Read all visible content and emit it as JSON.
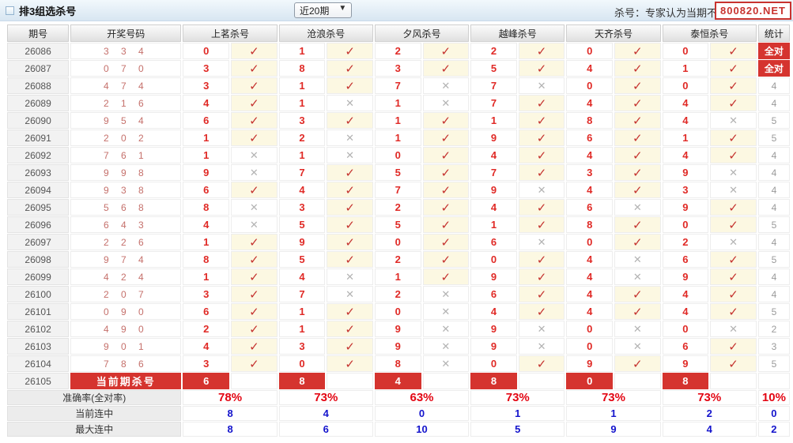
{
  "header": {
    "title": "排3组选杀号",
    "period_select": "近20期",
    "note": "杀号：专家认为当期不可能开出的号",
    "watermark": "800820.NET"
  },
  "glyphs": {
    "hit": "✓",
    "miss": "✕"
  },
  "colors": {
    "accent_red": "#d5342f",
    "kill_number_red": "#e02a26",
    "hit_cell_yellow": "#fcf8e2",
    "miss_gray": "#b3b3b3",
    "rate_red": "#e30613",
    "streak_blue": "#1414cc",
    "draw_pink": "#c5706b",
    "titlebar_blue": "#d8e6f2"
  },
  "table": {
    "columns": [
      "期号",
      "开奖号码",
      "上茗杀号",
      "沧浪杀号",
      "夕风杀号",
      "越峰杀号",
      "天齐杀号",
      "泰恒杀号",
      "统计"
    ],
    "all_correct_label": "全对",
    "rows": [
      {
        "period": "26086",
        "draw": "3 3 4",
        "kills": [
          [
            "0",
            1
          ],
          [
            "1",
            1
          ],
          [
            "2",
            1
          ],
          [
            "2",
            1
          ],
          [
            "0",
            1
          ],
          [
            "0",
            1
          ]
        ],
        "stat": "全对"
      },
      {
        "period": "26087",
        "draw": "0 7 0",
        "kills": [
          [
            "3",
            1
          ],
          [
            "8",
            1
          ],
          [
            "3",
            1
          ],
          [
            "5",
            1
          ],
          [
            "4",
            1
          ],
          [
            "1",
            1
          ]
        ],
        "stat": "全对"
      },
      {
        "period": "26088",
        "draw": "4 7 4",
        "kills": [
          [
            "3",
            1
          ],
          [
            "1",
            1
          ],
          [
            "7",
            0
          ],
          [
            "7",
            0
          ],
          [
            "0",
            1
          ],
          [
            "0",
            1
          ]
        ],
        "stat": "4"
      },
      {
        "period": "26089",
        "draw": "2 1 6",
        "kills": [
          [
            "4",
            1
          ],
          [
            "1",
            0
          ],
          [
            "1",
            0
          ],
          [
            "7",
            1
          ],
          [
            "4",
            1
          ],
          [
            "4",
            1
          ]
        ],
        "stat": "4"
      },
      {
        "period": "26090",
        "draw": "9 5 4",
        "kills": [
          [
            "6",
            1
          ],
          [
            "3",
            1
          ],
          [
            "1",
            1
          ],
          [
            "1",
            1
          ],
          [
            "8",
            1
          ],
          [
            "4",
            0
          ]
        ],
        "stat": "5"
      },
      {
        "period": "26091",
        "draw": "2 0 2",
        "kills": [
          [
            "1",
            1
          ],
          [
            "2",
            0
          ],
          [
            "1",
            1
          ],
          [
            "9",
            1
          ],
          [
            "6",
            1
          ],
          [
            "1",
            1
          ]
        ],
        "stat": "5"
      },
      {
        "period": "26092",
        "draw": "7 6 1",
        "kills": [
          [
            "1",
            0
          ],
          [
            "1",
            0
          ],
          [
            "0",
            1
          ],
          [
            "4",
            1
          ],
          [
            "4",
            1
          ],
          [
            "4",
            1
          ]
        ],
        "stat": "4"
      },
      {
        "period": "26093",
        "draw": "9 9 8",
        "kills": [
          [
            "9",
            0
          ],
          [
            "7",
            1
          ],
          [
            "5",
            1
          ],
          [
            "7",
            1
          ],
          [
            "3",
            1
          ],
          [
            "9",
            0
          ]
        ],
        "stat": "4"
      },
      {
        "period": "26094",
        "draw": "9 3 8",
        "kills": [
          [
            "6",
            1
          ],
          [
            "4",
            1
          ],
          [
            "7",
            1
          ],
          [
            "9",
            0
          ],
          [
            "4",
            1
          ],
          [
            "3",
            0
          ]
        ],
        "stat": "4"
      },
      {
        "period": "26095",
        "draw": "5 6 8",
        "kills": [
          [
            "8",
            0
          ],
          [
            "3",
            1
          ],
          [
            "2",
            1
          ],
          [
            "4",
            1
          ],
          [
            "6",
            0
          ],
          [
            "9",
            1
          ]
        ],
        "stat": "4"
      },
      {
        "period": "26096",
        "draw": "6 4 3",
        "kills": [
          [
            "4",
            0
          ],
          [
            "5",
            1
          ],
          [
            "5",
            1
          ],
          [
            "1",
            1
          ],
          [
            "8",
            1
          ],
          [
            "0",
            1
          ]
        ],
        "stat": "5"
      },
      {
        "period": "26097",
        "draw": "2 2 6",
        "kills": [
          [
            "1",
            1
          ],
          [
            "9",
            1
          ],
          [
            "0",
            1
          ],
          [
            "6",
            0
          ],
          [
            "0",
            1
          ],
          [
            "2",
            0
          ]
        ],
        "stat": "4"
      },
      {
        "period": "26098",
        "draw": "9 7 4",
        "kills": [
          [
            "8",
            1
          ],
          [
            "5",
            1
          ],
          [
            "2",
            1
          ],
          [
            "0",
            1
          ],
          [
            "4",
            0
          ],
          [
            "6",
            1
          ]
        ],
        "stat": "5"
      },
      {
        "period": "26099",
        "draw": "4 2 4",
        "kills": [
          [
            "1",
            1
          ],
          [
            "4",
            0
          ],
          [
            "1",
            1
          ],
          [
            "9",
            1
          ],
          [
            "4",
            0
          ],
          [
            "9",
            1
          ]
        ],
        "stat": "4"
      },
      {
        "period": "26100",
        "draw": "2 0 7",
        "kills": [
          [
            "3",
            1
          ],
          [
            "7",
            0
          ],
          [
            "2",
            0
          ],
          [
            "6",
            1
          ],
          [
            "4",
            1
          ],
          [
            "4",
            1
          ]
        ],
        "stat": "4"
      },
      {
        "period": "26101",
        "draw": "0 9 0",
        "kills": [
          [
            "6",
            1
          ],
          [
            "1",
            1
          ],
          [
            "0",
            0
          ],
          [
            "4",
            1
          ],
          [
            "4",
            1
          ],
          [
            "4",
            1
          ]
        ],
        "stat": "5"
      },
      {
        "period": "26102",
        "draw": "4 9 0",
        "kills": [
          [
            "2",
            1
          ],
          [
            "1",
            1
          ],
          [
            "9",
            0
          ],
          [
            "9",
            0
          ],
          [
            "0",
            0
          ],
          [
            "0",
            0
          ]
        ],
        "stat": "2"
      },
      {
        "period": "26103",
        "draw": "9 0 1",
        "kills": [
          [
            "4",
            1
          ],
          [
            "3",
            1
          ],
          [
            "9",
            0
          ],
          [
            "9",
            0
          ],
          [
            "0",
            0
          ],
          [
            "6",
            1
          ]
        ],
        "stat": "3"
      },
      {
        "period": "26104",
        "draw": "7 8 6",
        "kills": [
          [
            "3",
            1
          ],
          [
            "0",
            1
          ],
          [
            "8",
            0
          ],
          [
            "0",
            1
          ],
          [
            "9",
            1
          ],
          [
            "9",
            1
          ]
        ],
        "stat": "5"
      }
    ],
    "current_row": {
      "period": "26105",
      "label": "当前期杀号",
      "kills": [
        "6",
        "8",
        "4",
        "8",
        "0",
        "8"
      ],
      "stat": ""
    },
    "summary": [
      {
        "label": "准确率(全对率)",
        "values": [
          "78%",
          "73%",
          "63%",
          "73%",
          "73%",
          "73%"
        ],
        "stat": "10%",
        "style": "red"
      },
      {
        "label": "当前连中",
        "values": [
          "8",
          "4",
          "0",
          "1",
          "1",
          "2"
        ],
        "stat": "0",
        "style": "blue"
      },
      {
        "label": "最大连中",
        "values": [
          "8",
          "6",
          "10",
          "5",
          "9",
          "4"
        ],
        "stat": "2",
        "style": "blue"
      }
    ]
  }
}
